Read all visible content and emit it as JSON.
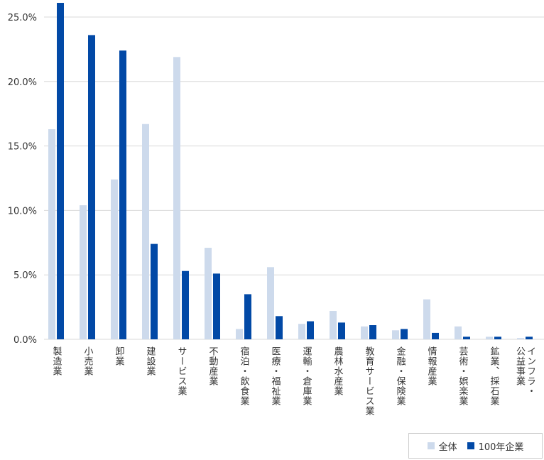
{
  "chart_data": {
    "type": "bar",
    "categories": [
      "製造業",
      "小売業",
      "卸業",
      "建設業",
      "サービス業",
      "不動産業",
      "宿泊・飲食業",
      "医療・福祉業",
      "運輸・倉庫業",
      "農林水産業",
      "教育サービス業",
      "金融・保険業",
      "情報産業",
      "芸術・娯楽業",
      "鉱業、採石業",
      "インフラ・\n公益事業"
    ],
    "series": [
      {
        "name": "全体",
        "color": "#cddaec",
        "values": [
          16.3,
          10.4,
          12.4,
          16.7,
          21.9,
          7.1,
          0.8,
          5.6,
          1.2,
          2.2,
          1.0,
          0.7,
          3.1,
          1.0,
          0.2,
          0.1
        ]
      },
      {
        "name": "100年企業",
        "color": "#0249a6",
        "values": [
          26.1,
          23.6,
          22.4,
          7.4,
          5.3,
          5.1,
          3.5,
          1.8,
          1.4,
          1.3,
          1.1,
          0.8,
          0.5,
          0.2,
          0.2,
          0.2
        ]
      }
    ],
    "ylim": [
      0,
      26
    ],
    "yticks": [
      "0.0%",
      "5.0%",
      "10.0%",
      "15.0%",
      "20.0%",
      "25.0%"
    ],
    "ytick_values": [
      0,
      5,
      10,
      15,
      20,
      25
    ],
    "grid": true,
    "legend": "bottom-right",
    "gridline_color": "#d9d9d9"
  }
}
